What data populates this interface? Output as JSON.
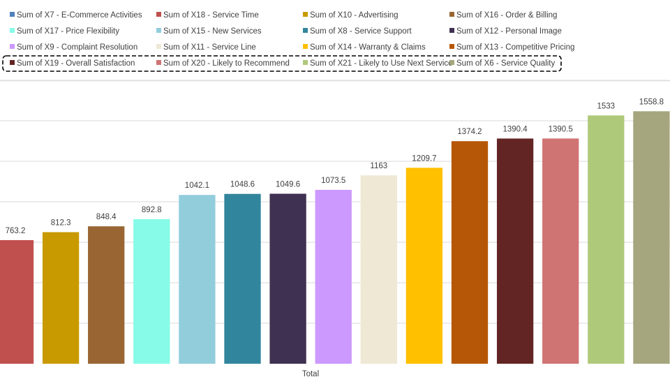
{
  "chart_data": {
    "type": "bar",
    "title": "",
    "xlabel": "Total",
    "ylabel": "",
    "ylim": [
      0,
      1750
    ],
    "grid_step": 250,
    "grid": true,
    "legend_position": "top",
    "highlighted_legend_row": 4,
    "series": [
      {
        "name": "Sum of X7 - E-Commerce Activities",
        "value": null,
        "color": "#4f81bd"
      },
      {
        "name": "Sum of X18 - Service Time",
        "value": 763.2,
        "color": "#c0504d"
      },
      {
        "name": "Sum of X10 - Advertising",
        "value": 812.3,
        "color": "#c99a00"
      },
      {
        "name": "Sum of X16 - Order & Billing",
        "value": 848.4,
        "color": "#996633"
      },
      {
        "name": "Sum of X17 - Price Flexibility",
        "value": 892.8,
        "color": "#87fbe7"
      },
      {
        "name": "Sum of X15 - New Services",
        "value": 1042.1,
        "color": "#92cddc"
      },
      {
        "name": "Sum of X8 - Service Support",
        "value": 1048.6,
        "color": "#31859c"
      },
      {
        "name": "Sum of X12 - Personal Image",
        "value": 1049.6,
        "color": "#3f3151"
      },
      {
        "name": "Sum of X9 - Complaint Resolution",
        "value": 1073.5,
        "color": "#cc99ff"
      },
      {
        "name": "Sum of X11 - Service Line",
        "value": 1163,
        "color": "#eee8d5"
      },
      {
        "name": "Sum of X14 - Warranty & Claims",
        "value": 1209.7,
        "color": "#ffc000"
      },
      {
        "name": "Sum of X13 - Competitive Pricing",
        "value": 1374.2,
        "color": "#b65708"
      },
      {
        "name": "Sum of X19 - Overall Satisfaction",
        "value": 1390.4,
        "color": "#632523"
      },
      {
        "name": "Sum of X20 - Likely to Recommend",
        "value": 1390.5,
        "color": "#d07373"
      },
      {
        "name": "Sum of X21 - Likely to Use Next Service",
        "value": 1533,
        "color": "#afc97a"
      },
      {
        "name": "Sum of X6 - Service Quality",
        "value": 1558.8,
        "color": "#a6a67e"
      }
    ],
    "value_labels": [
      "763.2",
      "812.3",
      "848.4",
      "892.8",
      "1042.1",
      "1048.6",
      "1049.6",
      "1073.5",
      "1163",
      "1209.7",
      "1374.2",
      "1390.4",
      "1390.5",
      "1533",
      "1558.8"
    ]
  }
}
